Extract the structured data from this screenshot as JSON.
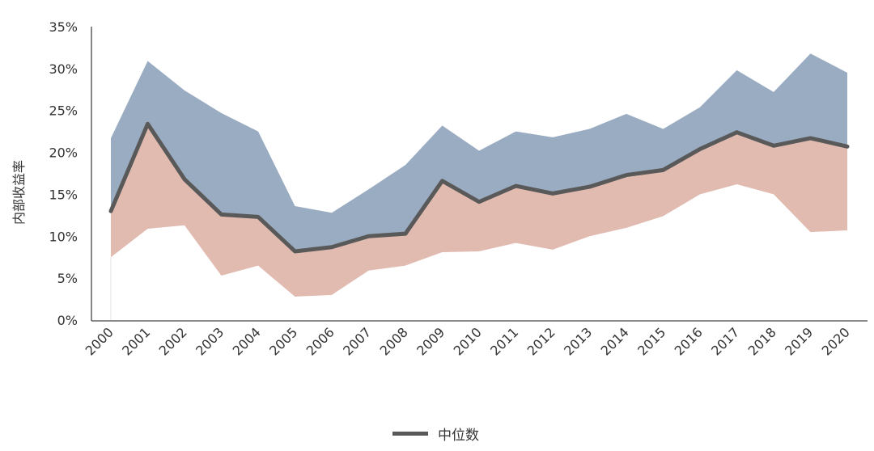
{
  "chart_data": {
    "type": "area",
    "title": "",
    "ylabel": "内部收益率",
    "xlabel": "",
    "categories": [
      "2000",
      "2001",
      "2002",
      "2003",
      "2004",
      "2005",
      "2006",
      "2007",
      "2008",
      "2009",
      "2010",
      "2011",
      "2012",
      "2013",
      "2014",
      "2015",
      "2016",
      "2017",
      "2018",
      "2019",
      "2020"
    ],
    "yticks": [
      "0%",
      "5%",
      "10%",
      "15%",
      "20%",
      "25%",
      "30%",
      "35%"
    ],
    "ylim": [
      0,
      35
    ],
    "series": [
      {
        "name": "",
        "role": "top-quartile",
        "color": "#9aacc2",
        "values": [
          21.7,
          30.9,
          27.4,
          24.7,
          22.5,
          13.6,
          12.8,
          15.6,
          18.5,
          23.2,
          20.2,
          22.5,
          21.8,
          22.8,
          24.6,
          22.8,
          25.4,
          29.8,
          27.2,
          31.8,
          29.5
        ]
      },
      {
        "name": "中位数",
        "role": "median",
        "color": "#595959",
        "values": [
          13.0,
          23.4,
          16.8,
          12.6,
          12.3,
          8.2,
          8.7,
          10.0,
          10.3,
          16.6,
          14.1,
          16.0,
          15.1,
          15.9,
          17.3,
          17.9,
          20.4,
          22.4,
          20.8,
          21.7,
          20.7
        ]
      },
      {
        "name": "",
        "role": "bottom-quartile",
        "color": "#e1bab0",
        "values": [
          7.5,
          10.9,
          11.3,
          5.3,
          6.5,
          2.8,
          3.0,
          5.9,
          6.5,
          8.1,
          8.2,
          9.2,
          8.4,
          10.0,
          11.0,
          12.4,
          15.0,
          16.2,
          15.0,
          10.5,
          10.7
        ]
      }
    ],
    "legend": {
      "position": "bottom-center",
      "entries": [
        "中位数"
      ]
    },
    "grid": false
  }
}
